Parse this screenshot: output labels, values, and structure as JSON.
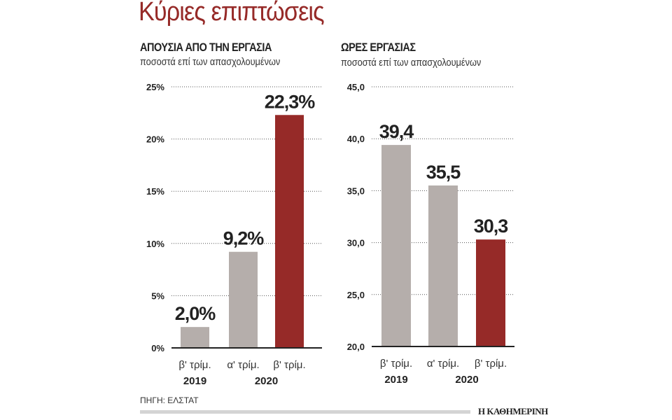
{
  "title": "Κύριες επιπτώσεις",
  "source": "ΠΗΓΗ: ΕΛΣΤΑΤ",
  "brand": "Η ΚΑΘΗΜΕΡΙΝΗ",
  "colors": {
    "title": "#962a28",
    "grey_bar": "#b5aeab",
    "red_bar": "#962a28"
  },
  "chart_data": [
    {
      "type": "bar",
      "title": "ΑΠΟΥΣΙΑ ΑΠΟ ΤΗΝ ΕΡΓΑΣΙΑ",
      "subtitle": "ποσοστά επί των  απασχολουμένων",
      "categories": [
        "β' τρίμ.",
        "α' τρίμ.",
        "β' τρίμ."
      ],
      "years": [
        {
          "label": "2019",
          "span": [
            0,
            0
          ]
        },
        {
          "label": "2020",
          "span": [
            1,
            2
          ]
        }
      ],
      "values": [
        2.0,
        9.2,
        22.3
      ],
      "data_labels": [
        "2,0%",
        "9,2%",
        "22,3%"
      ],
      "bar_colors": [
        "#b5aeab",
        "#b5aeab",
        "#962a28"
      ],
      "ylim": [
        0,
        25
      ],
      "yticks": [
        0,
        5,
        10,
        15,
        20,
        25
      ],
      "ytick_labels": [
        "0%",
        "5%",
        "10%",
        "15%",
        "20%",
        "25%"
      ],
      "grid": true
    },
    {
      "type": "bar",
      "title": "ΩΡΕΣ ΕΡΓΑΣΙΑΣ",
      "subtitle": "ποσοστά επί των απασχολουμένων",
      "categories": [
        "β' τρίμ.",
        "α' τρίμ.",
        "β' τρίμ."
      ],
      "years": [
        {
          "label": "2019",
          "span": [
            0,
            0
          ]
        },
        {
          "label": "2020",
          "span": [
            1,
            2
          ]
        }
      ],
      "values": [
        39.4,
        35.5,
        30.3
      ],
      "data_labels": [
        "39,4",
        "35,5",
        "30,3"
      ],
      "bar_colors": [
        "#b5aeab",
        "#b5aeab",
        "#962a28"
      ],
      "ylim": [
        20,
        45
      ],
      "yticks": [
        20,
        25,
        30,
        35,
        40,
        45
      ],
      "ytick_labels": [
        "20,0",
        "25,0",
        "30,0",
        "35,0",
        "40,0",
        "45,0"
      ],
      "grid": true
    }
  ]
}
